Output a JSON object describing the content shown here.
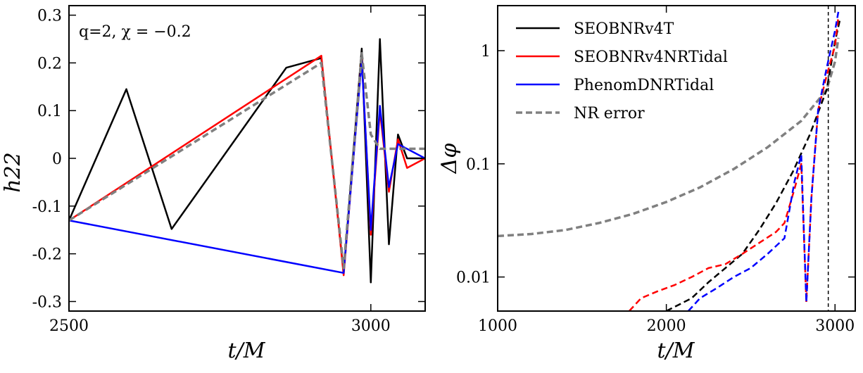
{
  "chart_data": [
    {
      "type": "line",
      "xlabel": "t/M",
      "ylabel": "h22",
      "xlim": [
        2500,
        3090
      ],
      "ylim": [
        -0.32,
        0.32
      ],
      "annotation": "q=2, χ = −0.2",
      "x_ticks": [
        {
          "value": 2500,
          "label": "2500"
        },
        {
          "value": 3000,
          "label": "3000"
        }
      ],
      "y_ticks": [
        {
          "value": 0.3,
          "label": "0.3"
        },
        {
          "value": 0.2,
          "label": "0.2"
        },
        {
          "value": 0.1,
          "label": "0.1"
        },
        {
          "value": 0.0,
          "label": "0"
        },
        {
          "value": -0.1,
          "label": "-0.1"
        },
        {
          "value": -0.2,
          "label": "-0.2"
        },
        {
          "value": -0.3,
          "label": "-0.3"
        }
      ],
      "series": [
        {
          "id": "seobnrv4t",
          "color": "#000000",
          "dash": "solid",
          "description": "peaks near 3010, 3025; merger oscillation",
          "points": [
            [
              2500,
              -0.13
            ],
            [
              2595,
              0.145
            ],
            [
              2670,
              -0.148
            ],
            [
              2860,
              0.19
            ],
            [
              2918,
              0.21
            ],
            [
              2955,
              -0.24
            ],
            [
              2985,
              0.23
            ],
            [
              3000,
              -0.26
            ],
            [
              3015,
              0.25
            ],
            [
              3030,
              -0.18
            ],
            [
              3045,
              0.05
            ],
            [
              3060,
              0.0
            ],
            [
              3090,
              0.0
            ]
          ]
        },
        {
          "id": "seobnrv4nrtidal",
          "color": "#ff0000",
          "dash": "solid",
          "points": [
            [
              2500,
              -0.13
            ],
            [
              2918,
              0.215
            ],
            [
              2955,
              -0.245
            ],
            [
              2985,
              0.21
            ],
            [
              3000,
              -0.16
            ],
            [
              3015,
              0.1
            ],
            [
              3030,
              -0.07
            ],
            [
              3045,
              0.04
            ],
            [
              3060,
              -0.02
            ],
            [
              3090,
              0.0
            ]
          ]
        },
        {
          "id": "phenomdnrtidal",
          "color": "#0000ff",
          "dash": "solid",
          "points": [
            [
              2500,
              -0.13
            ],
            [
              2955,
              -0.24
            ],
            [
              2985,
              0.205
            ],
            [
              3000,
              -0.15
            ],
            [
              3015,
              0.11
            ],
            [
              3030,
              -0.06
            ],
            [
              3045,
              0.03
            ],
            [
              3090,
              0.0
            ]
          ]
        },
        {
          "id": "nr",
          "color": "#808080",
          "dash": "dashed",
          "points": [
            [
              2500,
              -0.13
            ],
            [
              2918,
              0.2
            ],
            [
              2955,
              -0.23
            ],
            [
              2985,
              0.22
            ],
            [
              3000,
              0.05
            ],
            [
              3015,
              0.02
            ],
            [
              3050,
              0.02
            ],
            [
              3090,
              0.02
            ]
          ]
        }
      ]
    },
    {
      "type": "line",
      "xlabel": "t/M",
      "ylabel": "Δφ",
      "yscale": "log",
      "xlim": [
        1000,
        3120
      ],
      "ylim": [
        0.005,
        2.5
      ],
      "vline_x": 2960,
      "x_ticks": [
        {
          "value": 1000,
          "label": "1000"
        },
        {
          "value": 2000,
          "label": "2000"
        },
        {
          "value": 3000,
          "label": "3000"
        }
      ],
      "y_ticks": [
        {
          "value": 1,
          "label": "1"
        },
        {
          "value": 0.1,
          "label": "0.1"
        },
        {
          "value": 0.01,
          "label": "0.01"
        }
      ],
      "legend": [
        {
          "label": "SEOBNRv4T",
          "color": "#000000",
          "dash": "solid"
        },
        {
          "label": "SEOBNRv4NRTidal",
          "color": "#ff0000",
          "dash": "solid"
        },
        {
          "label": "PhenomDNRTidal",
          "color": "#0000ff",
          "dash": "solid"
        },
        {
          "label": "NR error",
          "color": "#808080",
          "dash": "dashed"
        }
      ],
      "series": [
        {
          "id": "nr-error",
          "color": "#808080",
          "dash": "dashed",
          "points": [
            [
              1000,
              0.023
            ],
            [
              1200,
              0.024
            ],
            [
              1400,
              0.026
            ],
            [
              1600,
              0.03
            ],
            [
              1800,
              0.036
            ],
            [
              2000,
              0.046
            ],
            [
              2200,
              0.062
            ],
            [
              2400,
              0.09
            ],
            [
              2600,
              0.14
            ],
            [
              2800,
              0.24
            ],
            [
              2950,
              0.45
            ],
            [
              3000,
              0.8
            ],
            [
              3020,
              1.3
            ]
          ]
        },
        {
          "id": "seobnrv4t-dphi",
          "color": "#000000",
          "dash": "dashed",
          "points": [
            [
              2000,
              0.005
            ],
            [
              2150,
              0.0065
            ],
            [
              2250,
              0.009
            ],
            [
              2350,
              0.012
            ],
            [
              2450,
              0.016
            ],
            [
              2550,
              0.026
            ],
            [
              2650,
              0.045
            ],
            [
              2750,
              0.085
            ],
            [
              2850,
              0.18
            ],
            [
              2950,
              0.45
            ],
            [
              3000,
              1.2
            ],
            [
              3030,
              1.9
            ]
          ]
        },
        {
          "id": "seobnrv4nrtidal-dphi",
          "color": "#ff0000",
          "dash": "dashed",
          "points": [
            [
              1780,
              0.005
            ],
            [
              1850,
              0.0065
            ],
            [
              1950,
              0.0075
            ],
            [
              2050,
              0.0085
            ],
            [
              2150,
              0.01
            ],
            [
              2250,
              0.012
            ],
            [
              2350,
              0.013
            ],
            [
              2450,
              0.016
            ],
            [
              2550,
              0.02
            ],
            [
              2650,
              0.025
            ],
            [
              2700,
              0.03
            ],
            [
              2760,
              0.06
            ],
            [
              2800,
              0.1
            ],
            [
              2830,
              0.006
            ],
            [
              2860,
              0.05
            ],
            [
              2900,
              0.3
            ],
            [
              2950,
              0.6
            ],
            [
              3000,
              1.1
            ],
            [
              3020,
              2.0
            ]
          ]
        },
        {
          "id": "phenomdnrtidal-dphi",
          "color": "#0000ff",
          "dash": "dashed",
          "points": [
            [
              2130,
              0.005
            ],
            [
              2200,
              0.0065
            ],
            [
              2300,
              0.008
            ],
            [
              2400,
              0.01
            ],
            [
              2500,
              0.012
            ],
            [
              2600,
              0.016
            ],
            [
              2700,
              0.022
            ],
            [
              2760,
              0.07
            ],
            [
              2800,
              0.12
            ],
            [
              2830,
              0.006
            ],
            [
              2860,
              0.05
            ],
            [
              2900,
              0.3
            ],
            [
              2950,
              0.7
            ],
            [
              3000,
              1.5
            ],
            [
              3020,
              2.2
            ]
          ]
        }
      ]
    }
  ]
}
